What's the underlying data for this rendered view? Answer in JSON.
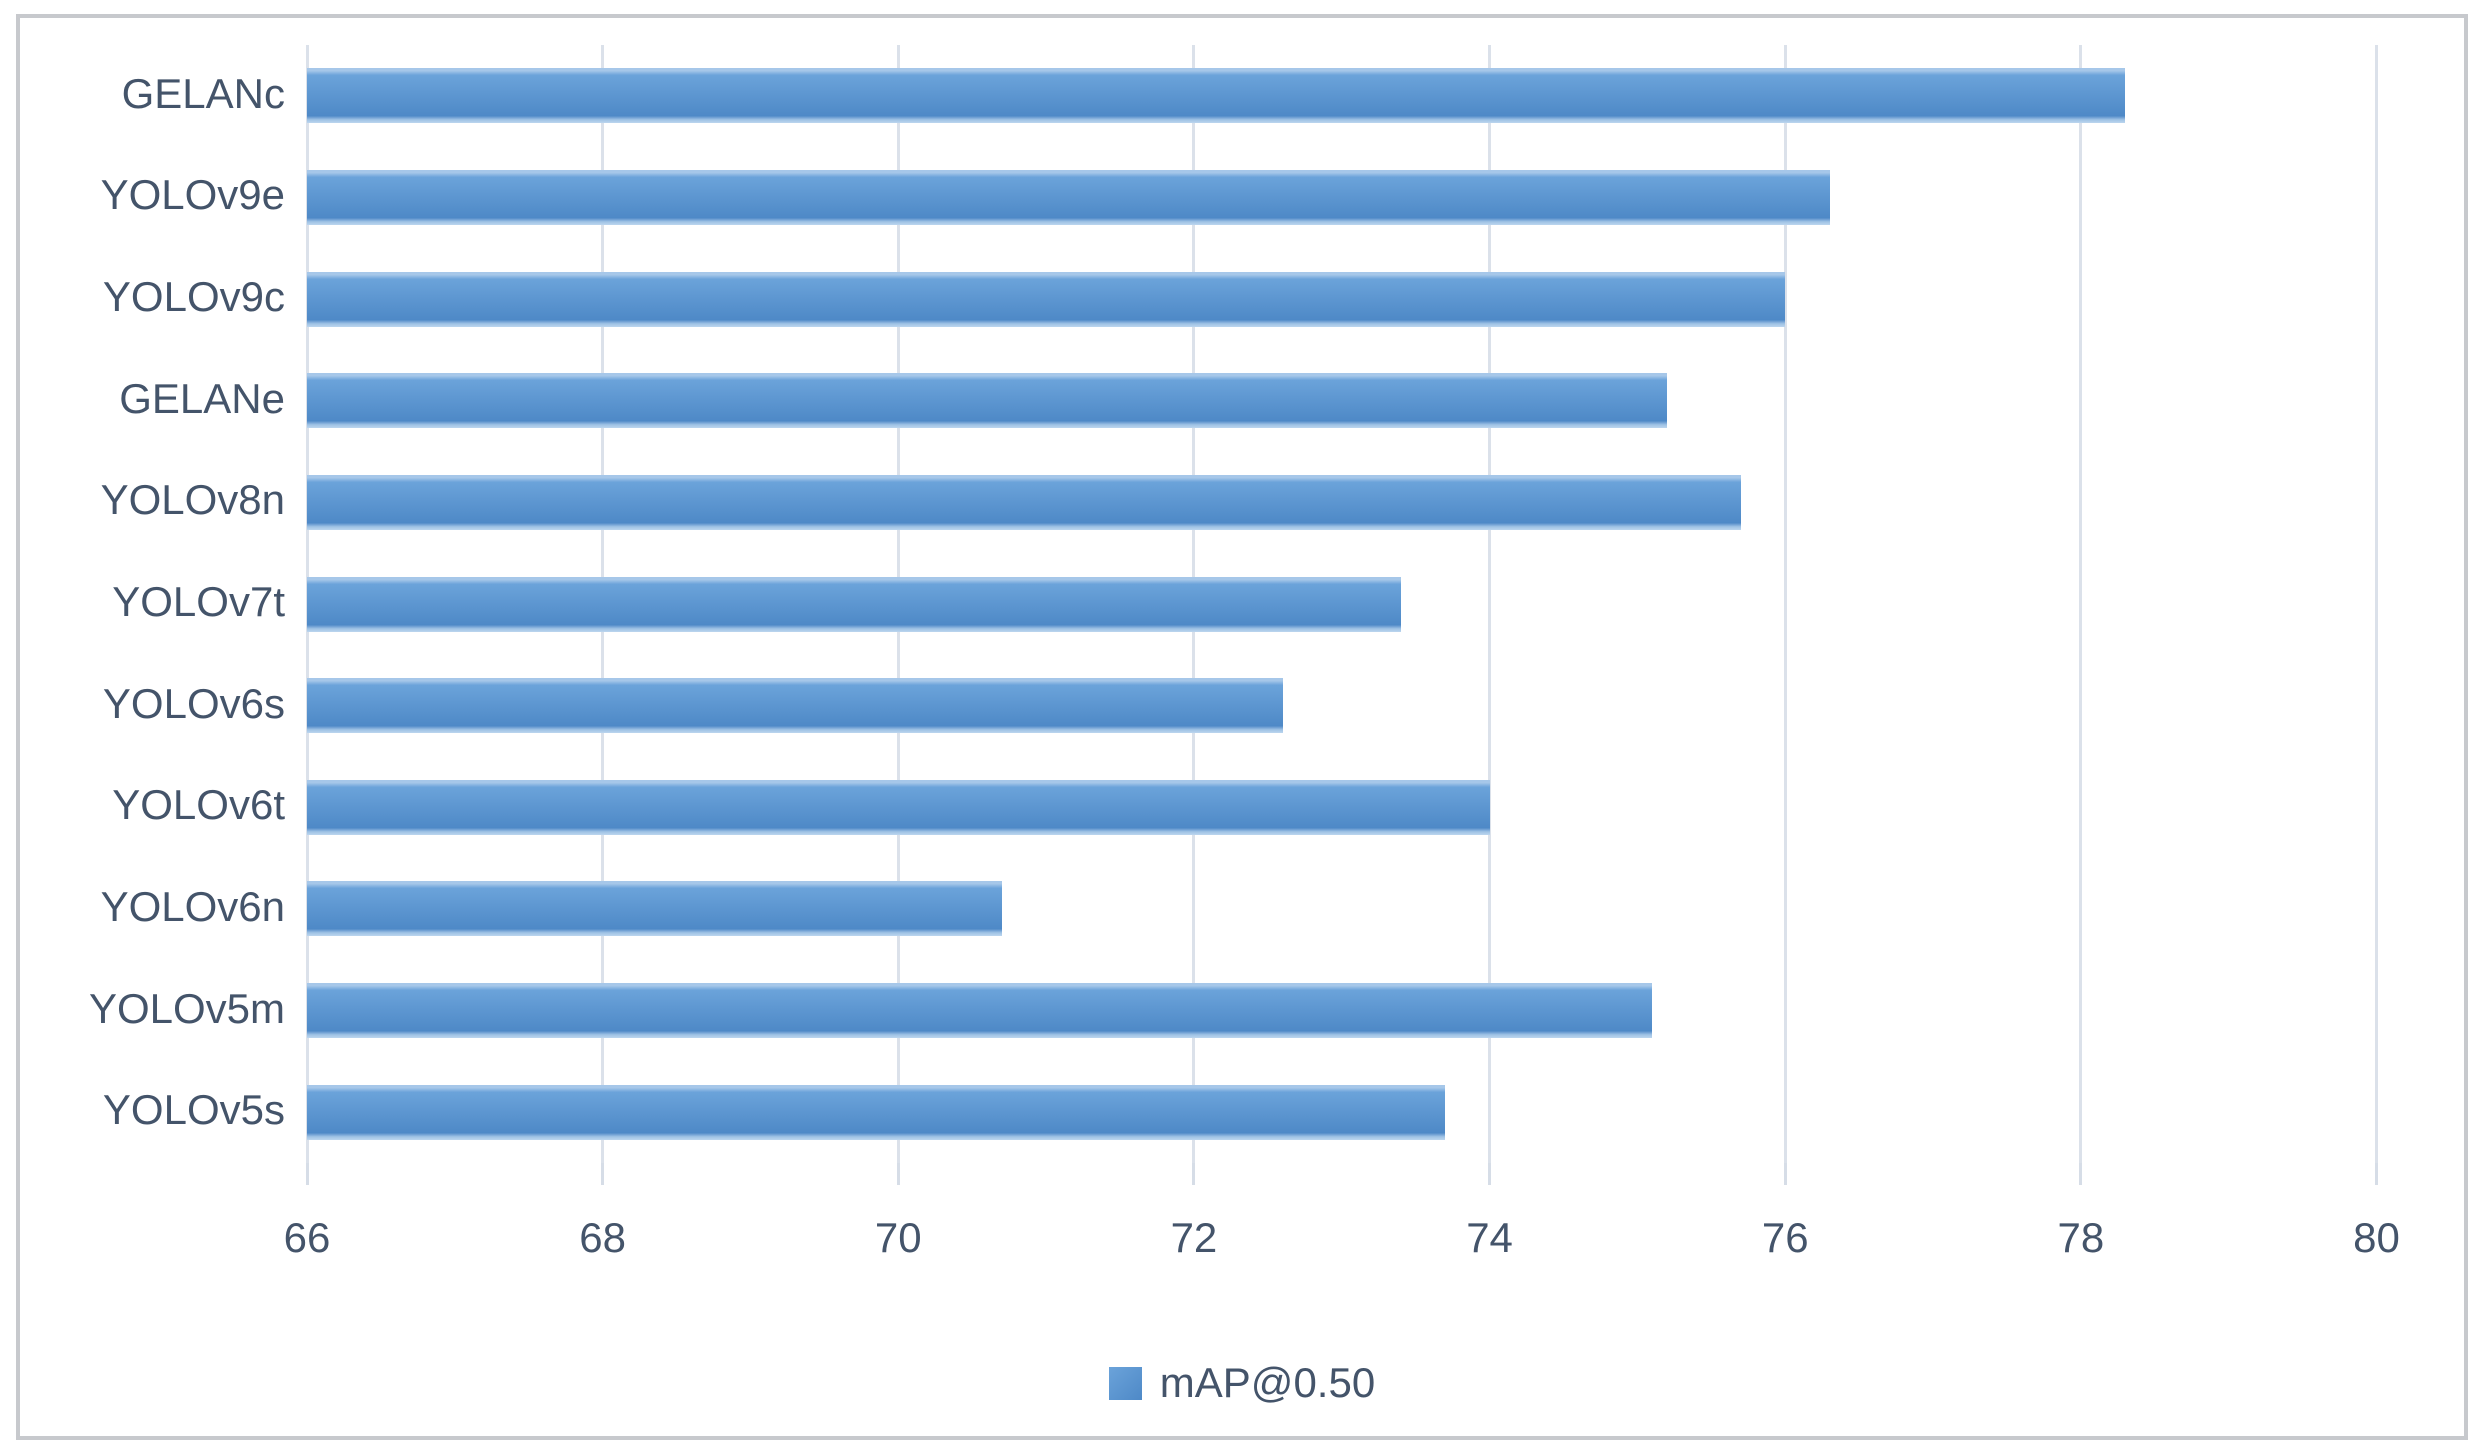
{
  "chart_data": {
    "type": "bar",
    "orientation": "horizontal",
    "title": "",
    "categories": [
      "GELANc",
      "YOLOv9e",
      "YOLOv9c",
      "GELANe",
      "YOLOv8n",
      "YOLOv7t",
      "YOLOv6s",
      "YOLOv6t",
      "YOLOv6n",
      "YOLOv5m",
      "YOLOv5s"
    ],
    "series": [
      {
        "name": "mAP@0.50",
        "values": [
          78.3,
          76.3,
          76.0,
          75.2,
          75.7,
          73.4,
          72.6,
          74.0,
          70.7,
          75.1,
          73.7
        ]
      }
    ],
    "xlim": [
      66,
      80
    ],
    "xticks": [
      66,
      68,
      70,
      72,
      74,
      76,
      78,
      80
    ],
    "grid": "vertical-gridlines-on",
    "legend_position": "bottom-center",
    "colors": {
      "bar_main": "#4E89C7",
      "bar_light": "#6BA3DA",
      "bar_edge_highlight": "#A6C7E9",
      "gridline": "#DBE1EA",
      "text": "#44546A",
      "frame_border": "#C7C9CD",
      "background": "#FFFFFF"
    }
  }
}
